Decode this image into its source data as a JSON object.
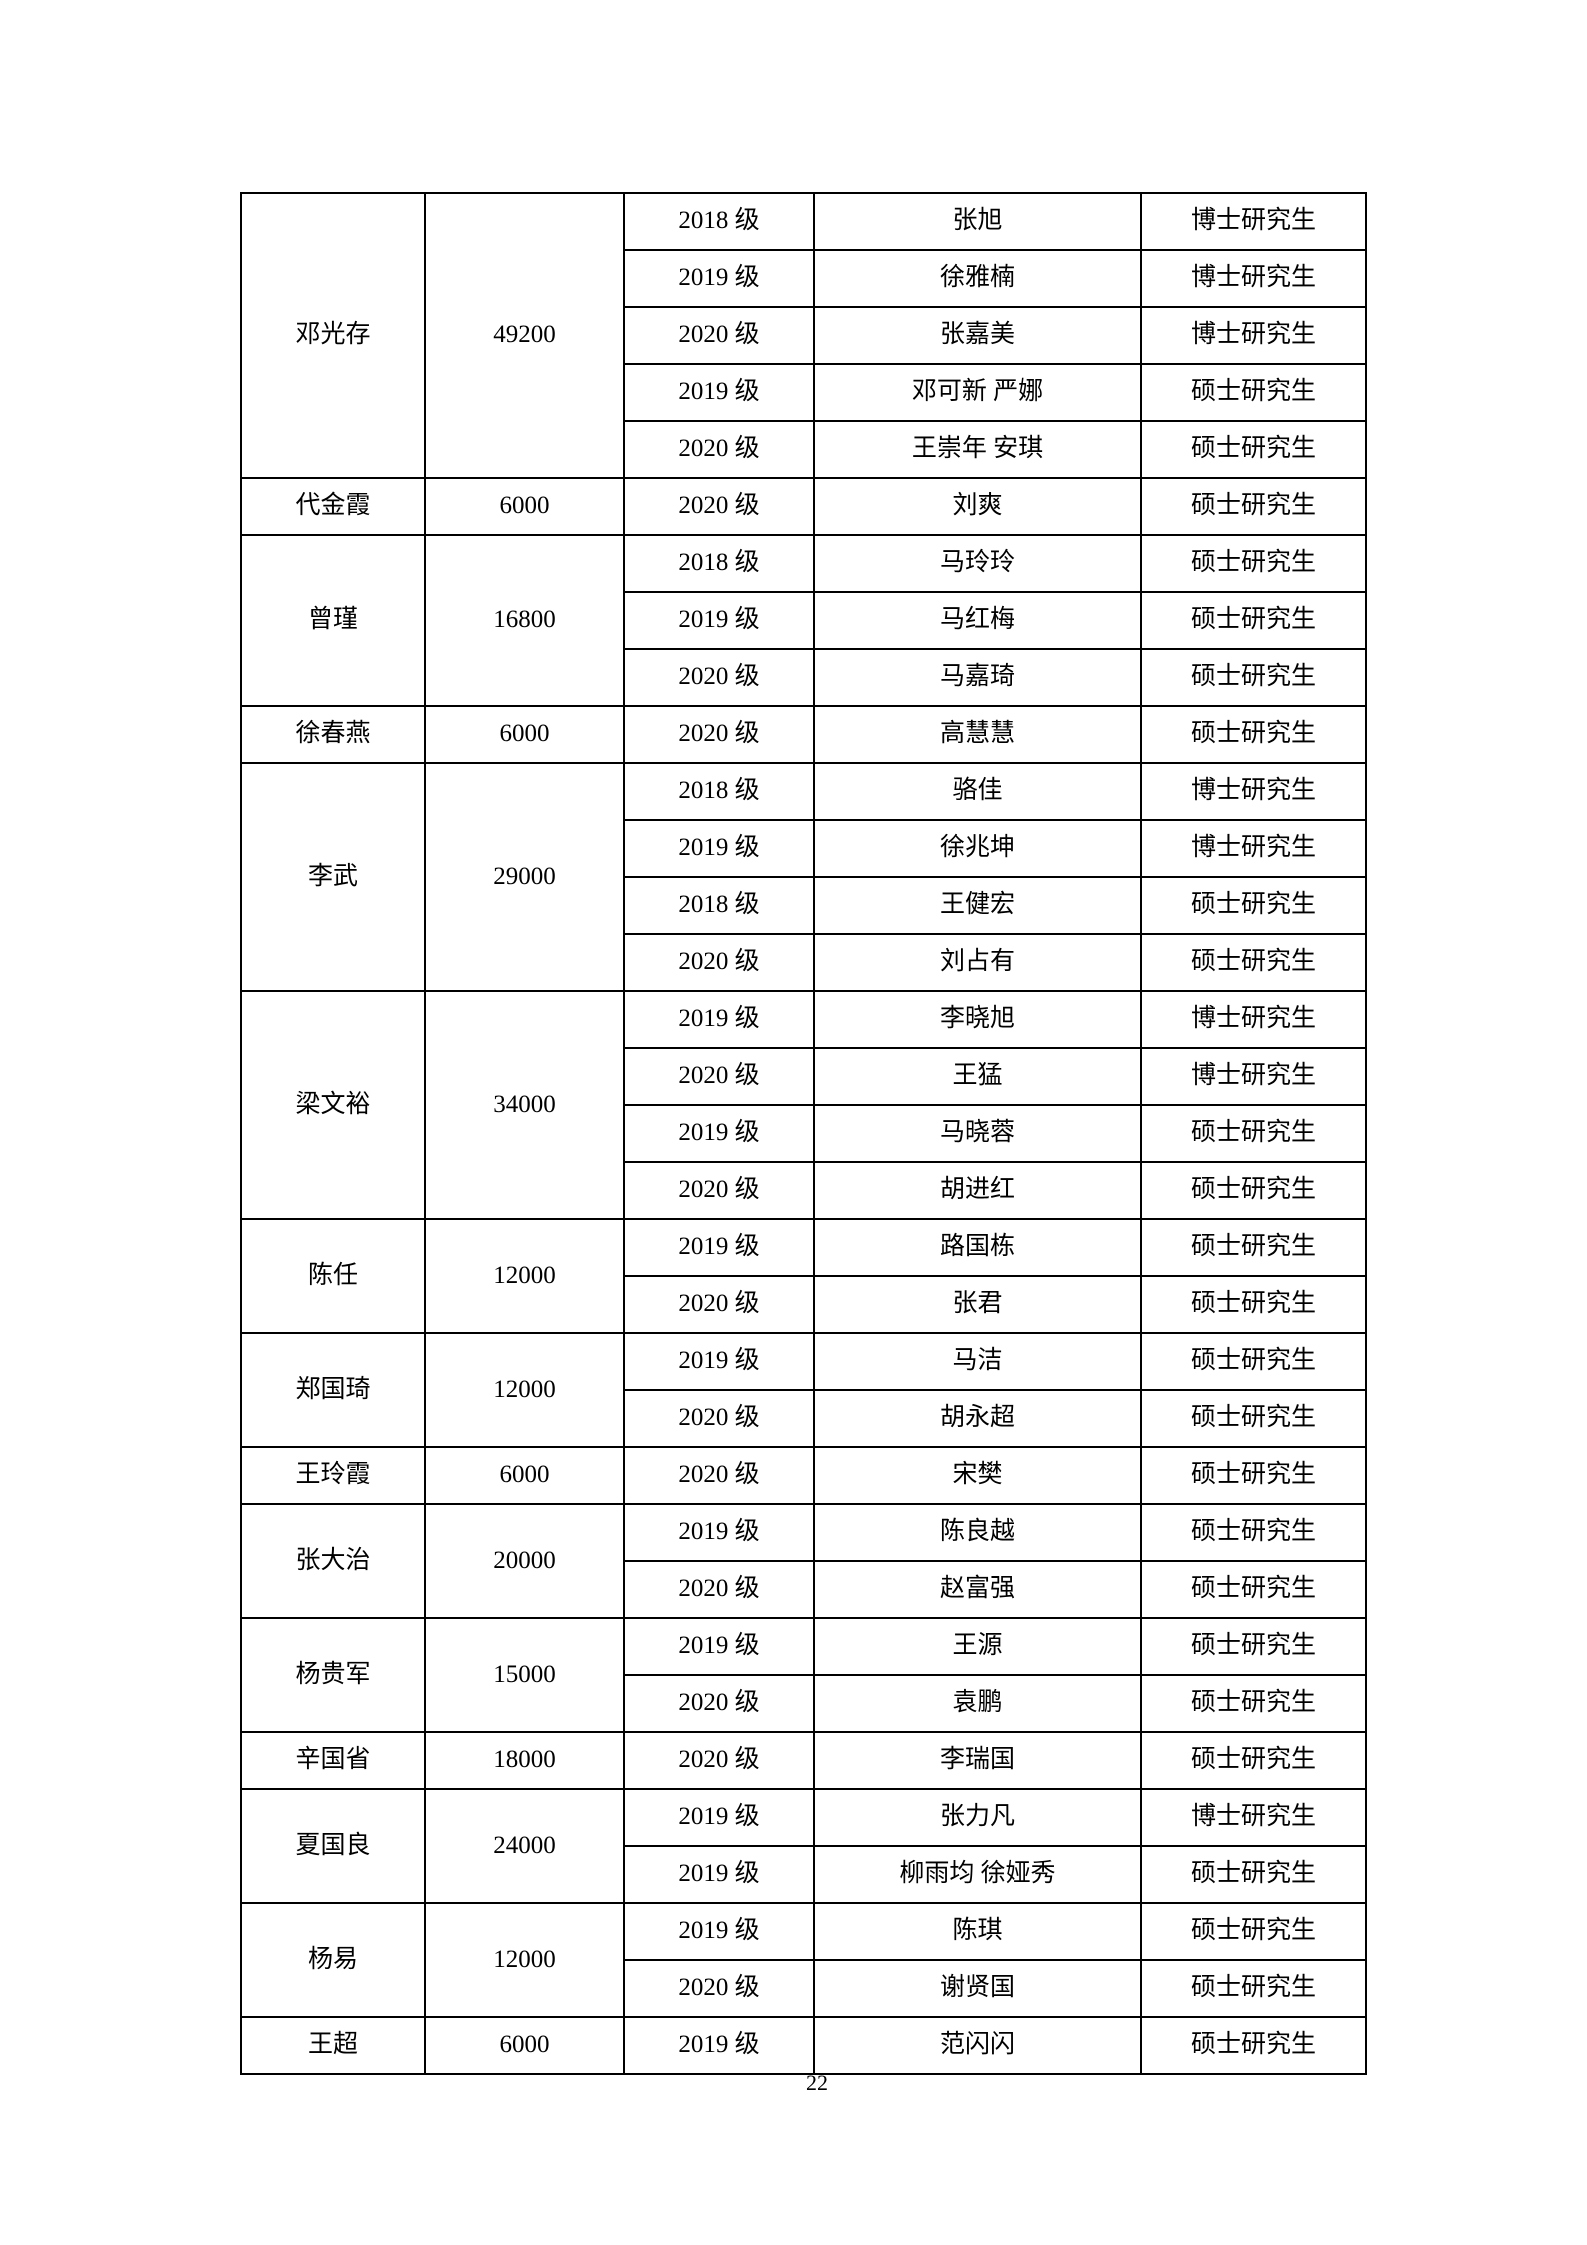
{
  "page": {
    "number": "22"
  },
  "table": {
    "groups": [
      {
        "teacher": "邓光存",
        "amount": "49200",
        "rows": [
          {
            "grade": "2018 级",
            "students": "张旭",
            "type": "博士研究生"
          },
          {
            "grade": "2019 级",
            "students": "徐雅楠",
            "type": "博士研究生"
          },
          {
            "grade": "2020 级",
            "students": "张嘉美",
            "type": "博士研究生"
          },
          {
            "grade": "2019 级",
            "students": "邓可新 严娜",
            "type": "硕士研究生"
          },
          {
            "grade": "2020 级",
            "students": "王崇年 安琪",
            "type": "硕士研究生"
          }
        ]
      },
      {
        "teacher": "代金霞",
        "amount": "6000",
        "rows": [
          {
            "grade": "2020 级",
            "students": "刘爽",
            "type": "硕士研究生"
          }
        ]
      },
      {
        "teacher": "曾瑾",
        "amount": "16800",
        "rows": [
          {
            "grade": "2018 级",
            "students": "马玲玲",
            "type": "硕士研究生"
          },
          {
            "grade": "2019 级",
            "students": "马红梅",
            "type": "硕士研究生"
          },
          {
            "grade": "2020 级",
            "students": "马嘉琦",
            "type": "硕士研究生"
          }
        ]
      },
      {
        "teacher": "徐春燕",
        "amount": "6000",
        "rows": [
          {
            "grade": "2020 级",
            "students": "高慧慧",
            "type": "硕士研究生"
          }
        ]
      },
      {
        "teacher": "李武",
        "amount": "29000",
        "rows": [
          {
            "grade": "2018 级",
            "students": "骆佳",
            "type": "博士研究生"
          },
          {
            "grade": "2019 级",
            "students": "徐兆坤",
            "type": "博士研究生"
          },
          {
            "grade": "2018 级",
            "students": "王健宏",
            "type": "硕士研究生"
          },
          {
            "grade": "2020 级",
            "students": "刘占有",
            "type": "硕士研究生"
          }
        ]
      },
      {
        "teacher": "梁文裕",
        "amount": "34000",
        "rows": [
          {
            "grade": "2019 级",
            "students": "李晓旭",
            "type": "博士研究生"
          },
          {
            "grade": "2020 级",
            "students": "王猛",
            "type": "博士研究生"
          },
          {
            "grade": "2019 级",
            "students": "马晓蓉",
            "type": "硕士研究生"
          },
          {
            "grade": "2020 级",
            "students": "胡进红",
            "type": "硕士研究生"
          }
        ]
      },
      {
        "teacher": "陈任",
        "amount": "12000",
        "rows": [
          {
            "grade": "2019 级",
            "students": "路国栋",
            "type": "硕士研究生"
          },
          {
            "grade": "2020 级",
            "students": "张君",
            "type": "硕士研究生"
          }
        ]
      },
      {
        "teacher": "郑国琦",
        "amount": "12000",
        "rows": [
          {
            "grade": "2019 级",
            "students": "马洁",
            "type": "硕士研究生"
          },
          {
            "grade": "2020 级",
            "students": "胡永超",
            "type": "硕士研究生"
          }
        ]
      },
      {
        "teacher": "王玲霞",
        "amount": "6000",
        "rows": [
          {
            "grade": "2020 级",
            "students": "宋樊",
            "type": "硕士研究生"
          }
        ]
      },
      {
        "teacher": "张大治",
        "amount": "20000",
        "rows": [
          {
            "grade": "2019 级",
            "students": "陈良越",
            "type": "硕士研究生"
          },
          {
            "grade": "2020 级",
            "students": "赵富强",
            "type": "硕士研究生"
          }
        ]
      },
      {
        "teacher": "杨贵军",
        "amount": "15000",
        "rows": [
          {
            "grade": "2019 级",
            "students": "王源",
            "type": "硕士研究生"
          },
          {
            "grade": "2020 级",
            "students": "袁鹏",
            "type": "硕士研究生"
          }
        ]
      },
      {
        "teacher": "辛国省",
        "amount": "18000",
        "rows": [
          {
            "grade": "2020 级",
            "students": "李瑞国",
            "type": "硕士研究生"
          }
        ]
      },
      {
        "teacher": "夏国良",
        "amount": "24000",
        "rows": [
          {
            "grade": "2019 级",
            "students": "张力凡",
            "type": "博士研究生"
          },
          {
            "grade": "2019 级",
            "students": "柳雨均 徐娅秀",
            "type": "硕士研究生"
          }
        ]
      },
      {
        "teacher": "杨易",
        "amount": "12000",
        "rows": [
          {
            "grade": "2019 级",
            "students": "陈琪",
            "type": "硕士研究生"
          },
          {
            "grade": "2020 级",
            "students": "谢贤国",
            "type": "硕士研究生"
          }
        ]
      },
      {
        "teacher": "王超",
        "amount": "6000",
        "rows": [
          {
            "grade": "2019 级",
            "students": "范闪闪",
            "type": "硕士研究生"
          }
        ]
      }
    ]
  }
}
